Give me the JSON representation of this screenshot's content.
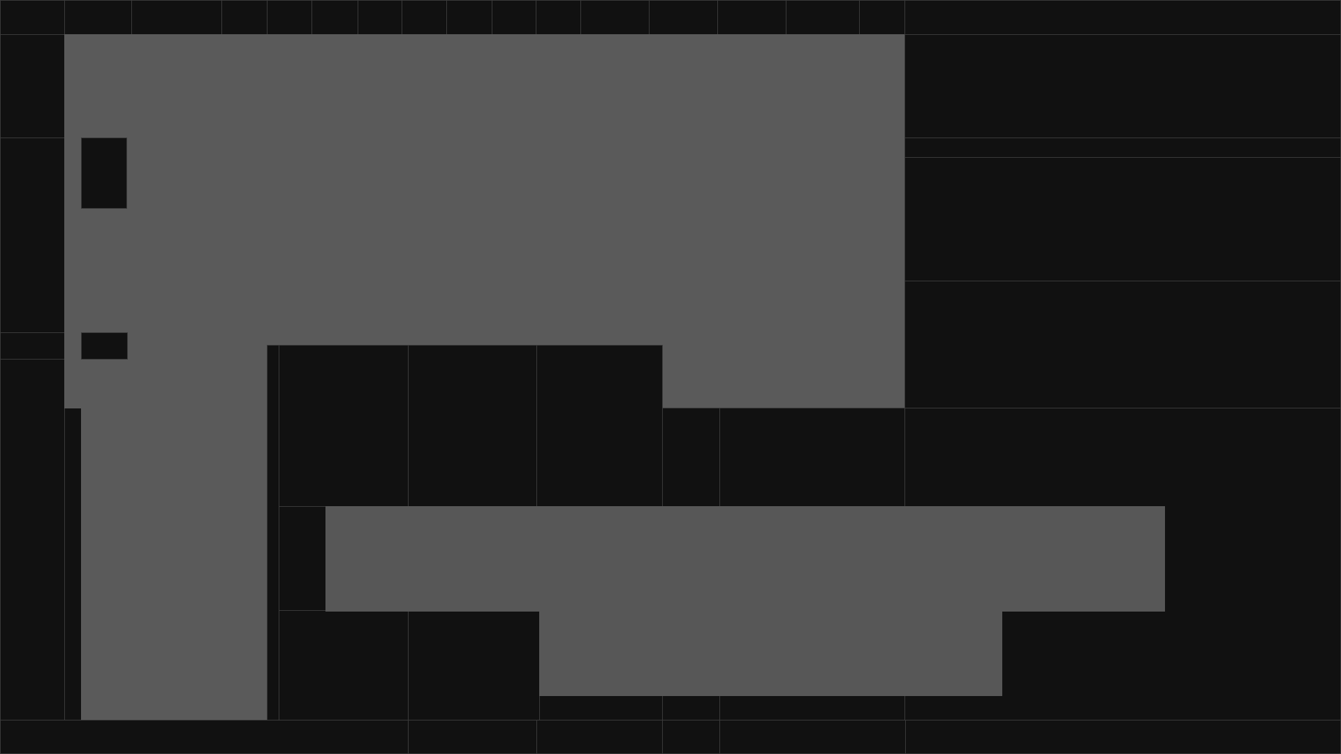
{
  "theme": {
    "background": "#111111",
    "panel_border": "#3a3a3a",
    "placeholder_fill": "#5a5a5a",
    "placeholder_fill_alt": "#575757"
  },
  "toolbar": {
    "tab_count": 13
  },
  "sidebar": {
    "item_count": 3
  },
  "inspector": {
    "section_count": 4
  },
  "timeline": {
    "segment_count": 6
  }
}
